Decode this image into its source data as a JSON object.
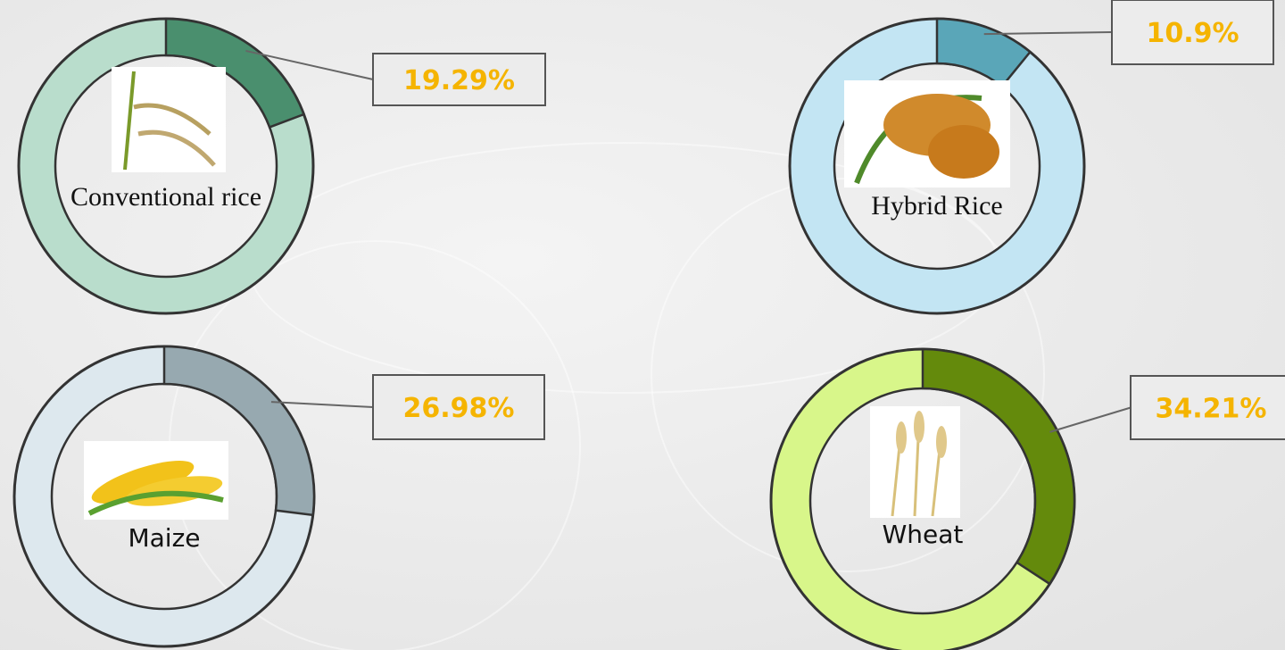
{
  "chart_data": [
    {
      "type": "donut",
      "label": "Conventional rice",
      "values": [
        19.29
      ],
      "value_labels": [
        "19.29%"
      ],
      "color": "#4a8f6e",
      "track_color": "#b9ddcc"
    },
    {
      "type": "donut",
      "label": "Hybrid Rice",
      "values": [
        10.9
      ],
      "value_labels": [
        "10.9%"
      ],
      "color": "#5aa6b8",
      "track_color": "#c3e5f3"
    },
    {
      "type": "donut",
      "label": "Maize",
      "values": [
        26.98
      ],
      "value_labels": [
        "26.98%"
      ],
      "color": "#97a9b0",
      "track_color": "#dde8ee"
    },
    {
      "type": "donut",
      "label": "Wheat",
      "values": [
        34.21
      ],
      "value_labels": [
        "34.21%"
      ],
      "color": "#648a0c",
      "track_color": "#d8f68a"
    }
  ]
}
